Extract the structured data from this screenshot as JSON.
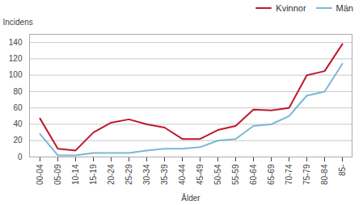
{
  "chart_data": {
    "type": "line",
    "xlabel": "Ålder",
    "ylabel": "Incidens",
    "categories": [
      "00-04",
      "05-09",
      "10-14",
      "15-19",
      "20-24",
      "25-29",
      "30-34",
      "35-39",
      "40-44",
      "45-49",
      "50-54",
      "55-59",
      "60-64",
      "65-69",
      "70-74",
      "75-79",
      "80-84",
      "85-"
    ],
    "series": [
      {
        "name": "Kvinnor",
        "color": "#c0182a",
        "values": [
          47,
          10,
          8,
          30,
          42,
          46,
          40,
          36,
          22,
          22,
          33,
          38,
          58,
          57,
          60,
          100,
          105,
          138
        ]
      },
      {
        "name": "Män",
        "color": "#7ab8d4",
        "values": [
          28,
          2,
          2,
          5,
          5,
          5,
          8,
          10,
          10,
          12,
          20,
          22,
          38,
          40,
          50,
          75,
          80,
          114
        ]
      }
    ],
    "ylim": [
      0,
      150
    ],
    "yticks": [
      0,
      20,
      40,
      60,
      80,
      100,
      120,
      140
    ],
    "grid": true,
    "legend": "upper right"
  }
}
